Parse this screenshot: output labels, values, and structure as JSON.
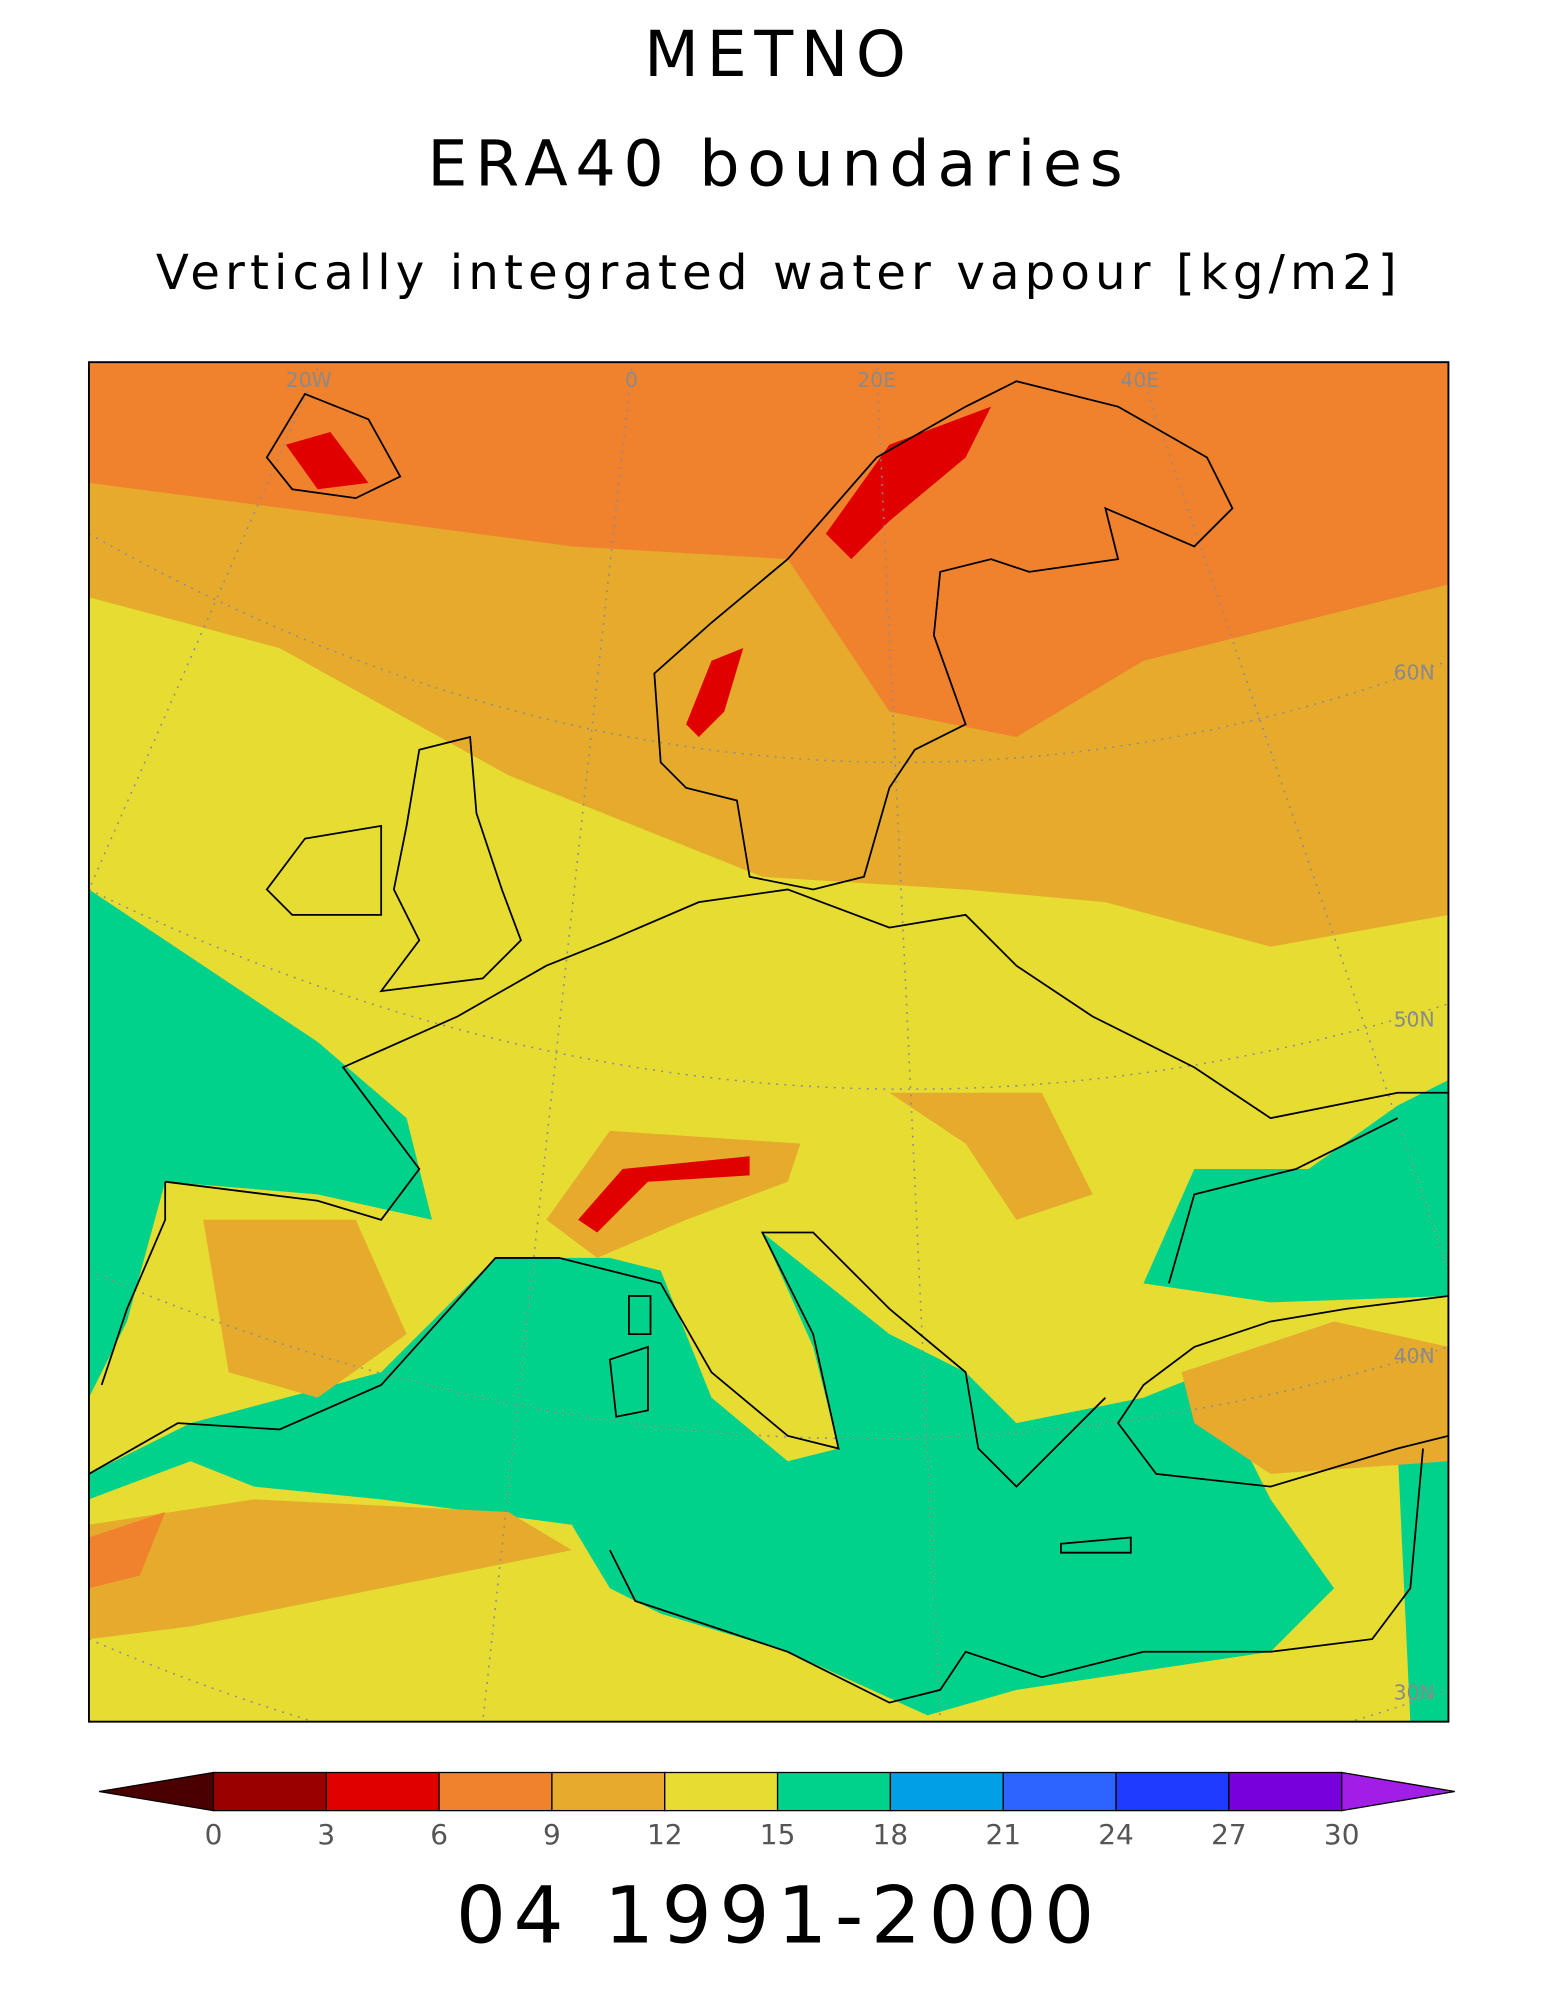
{
  "title": "METNO",
  "subtitle": "ERA40 boundaries",
  "variable": "Vertically integrated water vapour [kg/m2]",
  "map": {
    "lon_labels": [
      "20W",
      "0",
      "20E",
      "40E"
    ],
    "lat_labels": [
      "60N",
      "50N",
      "40N",
      "30N"
    ]
  },
  "colorbar": {
    "ticks": [
      0,
      3,
      6,
      9,
      12,
      15,
      18,
      21,
      24,
      27,
      30
    ],
    "colors": [
      "#4a0000",
      "#9a0000",
      "#e00000",
      "#f0822d",
      "#e6aa2d",
      "#e6dc32",
      "#00d28c",
      "#00a0e6",
      "#2d64ff",
      "#1e3cff",
      "#7800dc",
      "#a01ee6"
    ]
  },
  "period": "04 1991-2000"
}
